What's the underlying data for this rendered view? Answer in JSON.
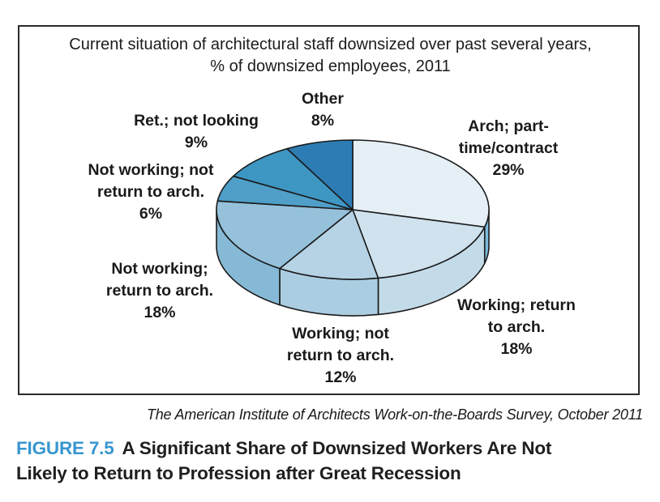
{
  "chart": {
    "title_line1": "Current situation of architectural staff downsized over past several years,",
    "title_line2": "% of downsized employees, 2011",
    "source": "The American Institute of Architects Work-on-the-Boards Survey, October 2011"
  },
  "chart_data": {
    "type": "pie",
    "effect": "3d",
    "title": "Current situation of architectural staff downsized over past several years, % of downsized employees, 2011",
    "start_angle_deg": 0,
    "direction": "clockwise",
    "outline_color": "#1a1a1a",
    "slices": [
      {
        "label": "Arch; part-time/contract",
        "value": 29,
        "color": "#e5eff6",
        "side_color": "#7cbada",
        "label_lines": [
          "Arch; part-",
          "time/contract",
          "29%"
        ]
      },
      {
        "label": "Working; return to arch.",
        "value": 18,
        "color": "#cfe2ee",
        "side_color": "#c3dbe9",
        "label_lines": [
          "Working; return",
          "to arch.",
          "18%"
        ]
      },
      {
        "label": "Working; not return to arch.",
        "value": 12,
        "color": "#b5d3e5",
        "side_color": "#abcde1",
        "label_lines": [
          "Working; not",
          "return to arch.",
          "12%"
        ]
      },
      {
        "label": "Not working; return to arch.",
        "value": 18,
        "color": "#95c1db",
        "side_color": "#85b9d5",
        "label_lines": [
          "Not working;",
          "return to arch.",
          "18%"
        ]
      },
      {
        "label": "Not working; not return to arch.",
        "value": 6,
        "color": "#4f9fc8",
        "side_color": "#4694bd",
        "label_lines": [
          "Not working; not",
          "return to arch.",
          "6%"
        ]
      },
      {
        "label": "Ret.; not looking",
        "value": 9,
        "color": "#3e96c3",
        "side_color": "#378bb7",
        "label_lines": [
          "Ret.; not looking",
          "9%"
        ]
      },
      {
        "label": "Other",
        "value": 8,
        "color": "#2d7db4",
        "side_color": "#2a74a8",
        "label_lines": [
          "Other",
          "8%"
        ]
      }
    ]
  },
  "caption": {
    "figure_label": "FIGURE 7.5",
    "text_line1": "A Significant Share of Downsized Workers Are Not",
    "text_line2": "Likely to Return to Profession after Great Recession",
    "accent_color": "#3896d0"
  }
}
